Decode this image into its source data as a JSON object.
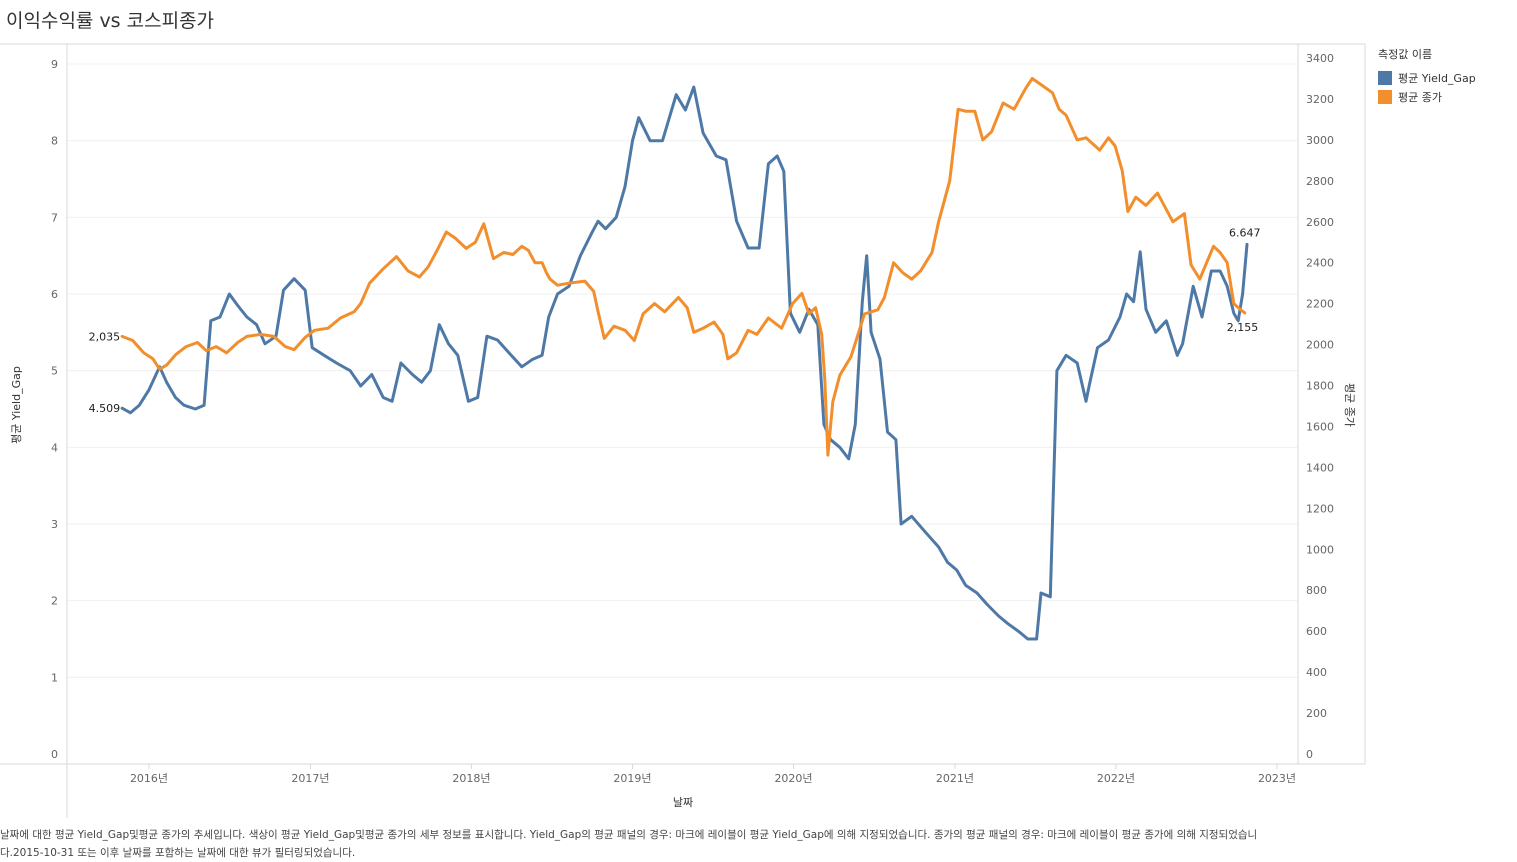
{
  "title": "이익수익률 vs 코스피종가",
  "legend": {
    "title": "측정값 이름",
    "items": [
      {
        "label": "평균 Yield_Gap",
        "color": "#4e79a7"
      },
      {
        "label": "평균 종가",
        "color": "#f28e2b"
      }
    ]
  },
  "caption": "날짜에 대한 평균 Yield_Gap및평균 종가의 추세입니다. 색상이 평균 Yield_Gap및평균 종가의 세부 정보를 표시합니다. Yield_Gap의 평균 패널의 경우: 마크에 레이블이 평균 Yield_Gap에 의해 지정되었습니다. 종가의 평균 패널의 경우: 마크에 레이블이 평균 종가에 의해 지정되었습니다.2015-10-31 또는 이후 날짜를 포함하는 날짜에 대한 뷰가 필터링되었습니다.",
  "chart_data": {
    "type": "line",
    "xlabel": "날짜",
    "ylabel_left": "평균 Yield_Gap",
    "ylabel_right": "평균 종가",
    "x_ticks": [
      "2016년",
      "2017년",
      "2018년",
      "2019년",
      "2020년",
      "2021년",
      "2022년",
      "2023년"
    ],
    "y_left_ticks": [
      "0",
      "1",
      "2",
      "3",
      "4",
      "5",
      "6",
      "7",
      "8",
      "9"
    ],
    "y_left_range": [
      0,
      9
    ],
    "y_right_ticks": [
      "0",
      "200",
      "400",
      "600",
      "800",
      "1000",
      "1200",
      "1400",
      "1600",
      "1800",
      "2000",
      "2200",
      "2400",
      "2600",
      "2800",
      "3000",
      "3200",
      "3400"
    ],
    "y_right_range": [
      0,
      3400
    ],
    "grid": true,
    "legend_position": "right",
    "series": [
      {
        "name": "평균 Yield_Gap",
        "color": "#4e79a7",
        "axis": "left",
        "start_label": "4.509",
        "end_label": "6.647",
        "points": [
          [
            "2015-11-01",
            4.51
          ],
          [
            "2015-11-20",
            4.45
          ],
          [
            "2015-12-10",
            4.55
          ],
          [
            "2016-01-01",
            4.75
          ],
          [
            "2016-01-25",
            5.05
          ],
          [
            "2016-02-10",
            4.85
          ],
          [
            "2016-03-01",
            4.65
          ],
          [
            "2016-03-20",
            4.55
          ],
          [
            "2016-04-15",
            4.5
          ],
          [
            "2016-05-05",
            4.55
          ],
          [
            "2016-05-20",
            5.65
          ],
          [
            "2016-06-10",
            5.7
          ],
          [
            "2016-07-01",
            6.0
          ],
          [
            "2016-07-20",
            5.85
          ],
          [
            "2016-08-10",
            5.7
          ],
          [
            "2016-09-01",
            5.6
          ],
          [
            "2016-09-20",
            5.35
          ],
          [
            "2016-10-15",
            5.45
          ],
          [
            "2016-11-01",
            6.05
          ],
          [
            "2016-11-25",
            6.2
          ],
          [
            "2016-12-20",
            6.05
          ],
          [
            "2017-01-05",
            5.3
          ],
          [
            "2017-02-01",
            5.2
          ],
          [
            "2017-03-01",
            5.1
          ],
          [
            "2017-04-01",
            5.0
          ],
          [
            "2017-04-25",
            4.8
          ],
          [
            "2017-05-20",
            4.95
          ],
          [
            "2017-06-15",
            4.65
          ],
          [
            "2017-07-05",
            4.6
          ],
          [
            "2017-07-25",
            5.1
          ],
          [
            "2017-08-20",
            4.95
          ],
          [
            "2017-09-10",
            4.85
          ],
          [
            "2017-09-30",
            5.0
          ],
          [
            "2017-10-20",
            5.6
          ],
          [
            "2017-11-10",
            5.35
          ],
          [
            "2017-12-01",
            5.2
          ],
          [
            "2017-12-25",
            4.6
          ],
          [
            "2018-01-15",
            4.65
          ],
          [
            "2018-02-05",
            5.45
          ],
          [
            "2018-03-01",
            5.4
          ],
          [
            "2018-04-01",
            5.2
          ],
          [
            "2018-04-25",
            5.05
          ],
          [
            "2018-05-20",
            5.15
          ],
          [
            "2018-06-10",
            5.2
          ],
          [
            "2018-06-25",
            5.7
          ],
          [
            "2018-07-15",
            6.0
          ],
          [
            "2018-08-10",
            6.1
          ],
          [
            "2018-09-05",
            6.5
          ],
          [
            "2018-10-01",
            6.8
          ],
          [
            "2018-10-15",
            6.95
          ],
          [
            "2018-11-01",
            6.85
          ],
          [
            "2018-11-25",
            7.0
          ],
          [
            "2018-12-15",
            7.4
          ],
          [
            "2019-01-01",
            8.0
          ],
          [
            "2019-01-15",
            8.3
          ],
          [
            "2019-02-10",
            8.0
          ],
          [
            "2019-03-10",
            8.0
          ],
          [
            "2019-04-10",
            8.6
          ],
          [
            "2019-05-01",
            8.4
          ],
          [
            "2019-05-20",
            8.7
          ],
          [
            "2019-06-10",
            8.1
          ],
          [
            "2019-07-10",
            7.8
          ],
          [
            "2019-08-01",
            7.75
          ],
          [
            "2019-08-25",
            6.95
          ],
          [
            "2019-09-20",
            6.6
          ],
          [
            "2019-10-15",
            6.6
          ],
          [
            "2019-11-05",
            7.7
          ],
          [
            "2019-11-25",
            7.8
          ],
          [
            "2019-12-10",
            7.6
          ],
          [
            "2019-12-25",
            5.75
          ],
          [
            "2020-01-15",
            5.5
          ],
          [
            "2020-02-05",
            5.8
          ],
          [
            "2020-02-25",
            5.6
          ],
          [
            "2020-03-10",
            4.3
          ],
          [
            "2020-03-25",
            4.1
          ],
          [
            "2020-04-15",
            4.0
          ],
          [
            "2020-05-05",
            3.85
          ],
          [
            "2020-05-20",
            4.3
          ],
          [
            "2020-06-05",
            5.9
          ],
          [
            "2020-06-15",
            6.5
          ],
          [
            "2020-06-25",
            5.5
          ],
          [
            "2020-07-15",
            5.15
          ],
          [
            "2020-08-01",
            4.2
          ],
          [
            "2020-08-20",
            4.1
          ],
          [
            "2020-09-01",
            3.0
          ],
          [
            "2020-09-25",
            3.1
          ],
          [
            "2020-10-25",
            2.9
          ],
          [
            "2020-11-25",
            2.7
          ],
          [
            "2020-12-15",
            2.5
          ],
          [
            "2021-01-05",
            2.4
          ],
          [
            "2021-01-25",
            2.2
          ],
          [
            "2021-02-20",
            2.1
          ],
          [
            "2021-03-15",
            1.95
          ],
          [
            "2021-04-10",
            1.8
          ],
          [
            "2021-05-01",
            1.7
          ],
          [
            "2021-05-25",
            1.6
          ],
          [
            "2021-06-15",
            1.5
          ],
          [
            "2021-07-05",
            1.5
          ],
          [
            "2021-07-15",
            2.1
          ],
          [
            "2021-08-05",
            2.05
          ],
          [
            "2021-08-20",
            5.0
          ],
          [
            "2021-09-10",
            5.2
          ],
          [
            "2021-10-05",
            5.1
          ],
          [
            "2021-10-25",
            4.6
          ],
          [
            "2021-11-01",
            4.8
          ],
          [
            "2021-11-20",
            5.3
          ],
          [
            "2021-12-15",
            5.4
          ],
          [
            "2022-01-10",
            5.7
          ],
          [
            "2022-01-25",
            6.0
          ],
          [
            "2022-02-10",
            5.9
          ],
          [
            "2022-02-25",
            6.55
          ],
          [
            "2022-03-10",
            5.8
          ],
          [
            "2022-04-01",
            5.5
          ],
          [
            "2022-04-25",
            5.65
          ],
          [
            "2022-05-20",
            5.2
          ],
          [
            "2022-06-01",
            5.35
          ],
          [
            "2022-06-25",
            6.1
          ],
          [
            "2022-07-15",
            5.7
          ],
          [
            "2022-08-05",
            6.3
          ],
          [
            "2022-08-25",
            6.3
          ],
          [
            "2022-09-10",
            6.1
          ],
          [
            "2022-09-25",
            5.75
          ],
          [
            "2022-10-05",
            5.65
          ],
          [
            "2022-10-15",
            6.0
          ],
          [
            "2022-10-25",
            6.647
          ]
        ]
      },
      {
        "name": "평균 종가",
        "color": "#f28e2b",
        "axis": "right",
        "start_label": "2,035",
        "end_label": "2,155",
        "points": [
          [
            "2015-11-01",
            2040
          ],
          [
            "2015-11-25",
            2020
          ],
          [
            "2015-12-20",
            1960
          ],
          [
            "2016-01-10",
            1930
          ],
          [
            "2016-01-25",
            1880
          ],
          [
            "2016-02-10",
            1900
          ],
          [
            "2016-03-01",
            1950
          ],
          [
            "2016-03-25",
            1990
          ],
          [
            "2016-04-20",
            2010
          ],
          [
            "2016-05-10",
            1970
          ],
          [
            "2016-06-01",
            1990
          ],
          [
            "2016-06-25",
            1960
          ],
          [
            "2016-07-20",
            2010
          ],
          [
            "2016-08-10",
            2040
          ],
          [
            "2016-09-10",
            2050
          ],
          [
            "2016-10-10",
            2040
          ],
          [
            "2016-11-05",
            1990
          ],
          [
            "2016-11-25",
            1975
          ],
          [
            "2016-12-20",
            2035
          ],
          [
            "2017-01-10",
            2070
          ],
          [
            "2017-02-10",
            2080
          ],
          [
            "2017-03-10",
            2130
          ],
          [
            "2017-04-10",
            2160
          ],
          [
            "2017-04-25",
            2200
          ],
          [
            "2017-05-15",
            2300
          ],
          [
            "2017-06-15",
            2370
          ],
          [
            "2017-07-15",
            2430
          ],
          [
            "2017-08-10",
            2360
          ],
          [
            "2017-09-05",
            2330
          ],
          [
            "2017-09-25",
            2380
          ],
          [
            "2017-10-15",
            2460
          ],
          [
            "2017-11-05",
            2550
          ],
          [
            "2017-11-25",
            2520
          ],
          [
            "2017-12-20",
            2470
          ],
          [
            "2018-01-10",
            2500
          ],
          [
            "2018-01-29",
            2590
          ],
          [
            "2018-02-20",
            2420
          ],
          [
            "2018-03-15",
            2450
          ],
          [
            "2018-04-05",
            2440
          ],
          [
            "2018-04-25",
            2480
          ],
          [
            "2018-05-10",
            2460
          ],
          [
            "2018-05-25",
            2400
          ],
          [
            "2018-06-10",
            2400
          ],
          [
            "2018-06-20",
            2350
          ],
          [
            "2018-06-28",
            2320
          ],
          [
            "2018-07-15",
            2290
          ],
          [
            "2018-08-10",
            2300
          ],
          [
            "2018-09-15",
            2310
          ],
          [
            "2018-10-05",
            2260
          ],
          [
            "2018-10-15",
            2160
          ],
          [
            "2018-10-29",
            2030
          ],
          [
            "2018-11-20",
            2090
          ],
          [
            "2018-12-15",
            2070
          ],
          [
            "2019-01-05",
            2020
          ],
          [
            "2019-01-25",
            2150
          ],
          [
            "2019-02-20",
            2200
          ],
          [
            "2019-03-15",
            2160
          ],
          [
            "2019-04-15",
            2230
          ],
          [
            "2019-05-05",
            2180
          ],
          [
            "2019-05-20",
            2060
          ],
          [
            "2019-06-10",
            2080
          ],
          [
            "2019-07-05",
            2110
          ],
          [
            "2019-07-25",
            2050
          ],
          [
            "2019-08-05",
            1930
          ],
          [
            "2019-08-25",
            1960
          ],
          [
            "2019-09-20",
            2070
          ],
          [
            "2019-10-10",
            2050
          ],
          [
            "2019-11-05",
            2130
          ],
          [
            "2019-12-05",
            2080
          ],
          [
            "2019-12-30",
            2200
          ],
          [
            "2020-01-20",
            2250
          ],
          [
            "2020-02-05",
            2150
          ],
          [
            "2020-02-20",
            2180
          ],
          [
            "2020-03-05",
            2050
          ],
          [
            "2020-03-12",
            1830
          ],
          [
            "2020-03-19",
            1460
          ],
          [
            "2020-03-30",
            1720
          ],
          [
            "2020-04-15",
            1850
          ],
          [
            "2020-05-10",
            1940
          ],
          [
            "2020-06-10",
            2150
          ],
          [
            "2020-07-10",
            2170
          ],
          [
            "2020-07-25",
            2230
          ],
          [
            "2020-08-15",
            2400
          ],
          [
            "2020-09-05",
            2350
          ],
          [
            "2020-09-25",
            2320
          ],
          [
            "2020-10-15",
            2360
          ],
          [
            "2020-11-10",
            2450
          ],
          [
            "2020-11-25",
            2600
          ],
          [
            "2020-12-20",
            2800
          ],
          [
            "2021-01-08",
            3150
          ],
          [
            "2021-01-25",
            3140
          ],
          [
            "2021-02-15",
            3140
          ],
          [
            "2021-03-05",
            3000
          ],
          [
            "2021-03-25",
            3040
          ],
          [
            "2021-04-20",
            3180
          ],
          [
            "2021-05-15",
            3150
          ],
          [
            "2021-06-10",
            3250
          ],
          [
            "2021-06-25",
            3300
          ],
          [
            "2021-07-15",
            3270
          ],
          [
            "2021-08-10",
            3230
          ],
          [
            "2021-08-25",
            3150
          ],
          [
            "2021-09-10",
            3120
          ],
          [
            "2021-10-05",
            3000
          ],
          [
            "2021-10-25",
            3010
          ],
          [
            "2021-11-25",
            2950
          ],
          [
            "2021-12-15",
            3010
          ],
          [
            "2021-12-30",
            2970
          ],
          [
            "2022-01-15",
            2850
          ],
          [
            "2022-01-28",
            2650
          ],
          [
            "2022-02-15",
            2720
          ],
          [
            "2022-03-10",
            2680
          ],
          [
            "2022-04-05",
            2740
          ],
          [
            "2022-05-10",
            2600
          ],
          [
            "2022-06-05",
            2640
          ],
          [
            "2022-06-20",
            2390
          ],
          [
            "2022-07-10",
            2320
          ],
          [
            "2022-08-10",
            2480
          ],
          [
            "2022-08-25",
            2450
          ],
          [
            "2022-09-10",
            2400
          ],
          [
            "2022-09-25",
            2200
          ],
          [
            "2022-10-05",
            2180
          ],
          [
            "2022-10-20",
            2155
          ]
        ]
      }
    ]
  }
}
